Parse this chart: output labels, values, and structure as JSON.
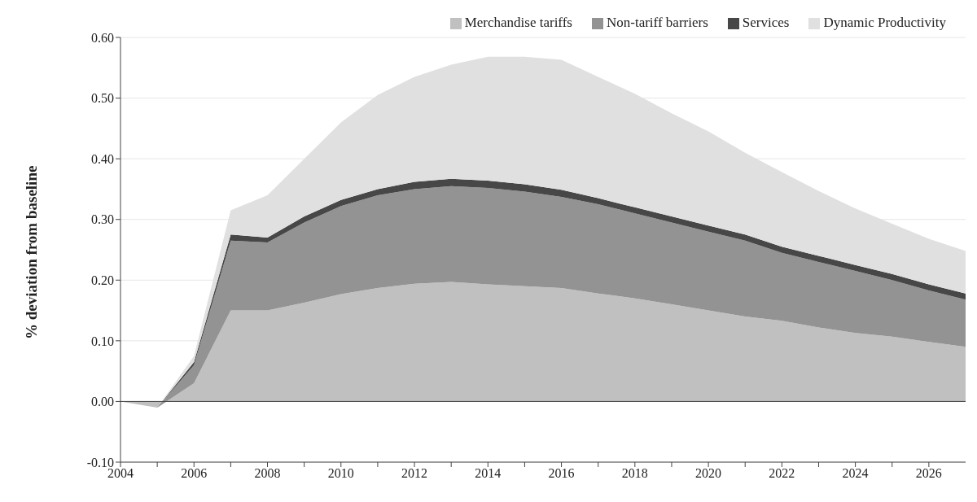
{
  "chart_data": {
    "type": "area",
    "stacked": true,
    "ylabel": "% deviation from baseline",
    "x": [
      2004,
      2005,
      2006,
      2007,
      2008,
      2009,
      2010,
      2011,
      2012,
      2013,
      2014,
      2015,
      2016,
      2017,
      2018,
      2019,
      2020,
      2021,
      2022,
      2023,
      2024,
      2025,
      2026,
      2027
    ],
    "series": [
      {
        "name": "Merchandise tariffs",
        "color": "#c0c0c0",
        "values": [
          0,
          -0.01,
          0.03,
          0.15,
          0.15,
          0.163,
          0.177,
          0.187,
          0.194,
          0.197,
          0.193,
          0.19,
          0.187,
          0.178,
          0.17,
          0.16,
          0.15,
          0.14,
          0.133,
          0.122,
          0.113,
          0.107,
          0.098,
          0.09
        ]
      },
      {
        "name": "Non-tariff barriers",
        "color": "#939393",
        "values": [
          0,
          0,
          0.03,
          0.115,
          0.112,
          0.132,
          0.145,
          0.153,
          0.156,
          0.158,
          0.159,
          0.156,
          0.15,
          0.147,
          0.14,
          0.135,
          0.13,
          0.125,
          0.112,
          0.108,
          0.102,
          0.093,
          0.085,
          0.078
        ]
      },
      {
        "name": "Services",
        "color": "#474747",
        "values": [
          0,
          0,
          0.005,
          0.01,
          0.008,
          0.01,
          0.01,
          0.01,
          0.012,
          0.012,
          0.012,
          0.012,
          0.012,
          0.01,
          0.01,
          0.01,
          0.01,
          0.01,
          0.01,
          0.01,
          0.01,
          0.01,
          0.01,
          0.01
        ]
      },
      {
        "name": "Dynamic Productivity",
        "color": "#e0e0e0",
        "values": [
          0,
          0,
          0.01,
          0.04,
          0.07,
          0.095,
          0.128,
          0.155,
          0.173,
          0.188,
          0.204,
          0.21,
          0.214,
          0.2,
          0.187,
          0.17,
          0.155,
          0.135,
          0.123,
          0.107,
          0.093,
          0.083,
          0.075,
          0.07
        ]
      }
    ],
    "xlim": [
      2004,
      2027
    ],
    "xticks": [
      2004,
      {
        "value": 2005,
        "label": null
      },
      2006,
      {
        "value": 2007,
        "label": null
      },
      2008,
      {
        "value": 2009,
        "label": null
      },
      2010,
      {
        "value": 2011,
        "label": null
      },
      2012,
      {
        "value": 2013,
        "label": null
      },
      2014,
      {
        "value": 2015,
        "label": null
      },
      2016,
      {
        "value": 2017,
        "label": null
      },
      2018,
      {
        "value": 2019,
        "label": null
      },
      2020,
      {
        "value": 2021,
        "label": null
      },
      2022,
      {
        "value": 2023,
        "label": null
      },
      2024,
      {
        "value": 2025,
        "label": null
      },
      2026
    ],
    "ylim": [
      -0.1,
      0.6
    ],
    "yticks": [
      {
        "value": -0.1,
        "label": "-0.10"
      },
      {
        "value": 0,
        "label": "0.00"
      },
      {
        "value": 0.1,
        "label": "0.10"
      },
      {
        "value": 0.2,
        "label": "0.20"
      },
      {
        "value": 0.3,
        "label": "0.30"
      },
      {
        "value": 0.4,
        "label": "0.40"
      },
      {
        "value": 0.5,
        "label": "0.50"
      },
      {
        "value": 0.6,
        "label": "0.60"
      }
    ],
    "grid": "y",
    "legend": "top right"
  }
}
